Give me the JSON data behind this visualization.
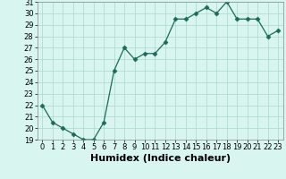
{
  "x": [
    0,
    1,
    2,
    3,
    4,
    5,
    6,
    7,
    8,
    9,
    10,
    11,
    12,
    13,
    14,
    15,
    16,
    17,
    18,
    19,
    20,
    21,
    22,
    23
  ],
  "y": [
    22,
    20.5,
    20,
    19.5,
    19,
    19,
    20.5,
    25,
    27,
    26,
    26.5,
    26.5,
    27.5,
    29.5,
    29.5,
    30,
    30.5,
    30,
    31,
    29.5,
    29.5,
    29.5,
    28,
    28.5
  ],
  "line_color": "#1a6b5a",
  "marker": "D",
  "marker_size": 2.5,
  "bg_color": "#d8f5f0",
  "grid_color": "#aad8d0",
  "xlabel": "Humidex (Indice chaleur)",
  "ylim": [
    19,
    31
  ],
  "xlim": [
    -0.5,
    23.5
  ],
  "yticks": [
    19,
    20,
    21,
    22,
    23,
    24,
    25,
    26,
    27,
    28,
    29,
    30,
    31
  ],
  "xticks": [
    0,
    1,
    2,
    3,
    4,
    5,
    6,
    7,
    8,
    9,
    10,
    11,
    12,
    13,
    14,
    15,
    16,
    17,
    18,
    19,
    20,
    21,
    22,
    23
  ],
  "tick_fontsize": 6.0,
  "xlabel_fontsize": 8.0
}
